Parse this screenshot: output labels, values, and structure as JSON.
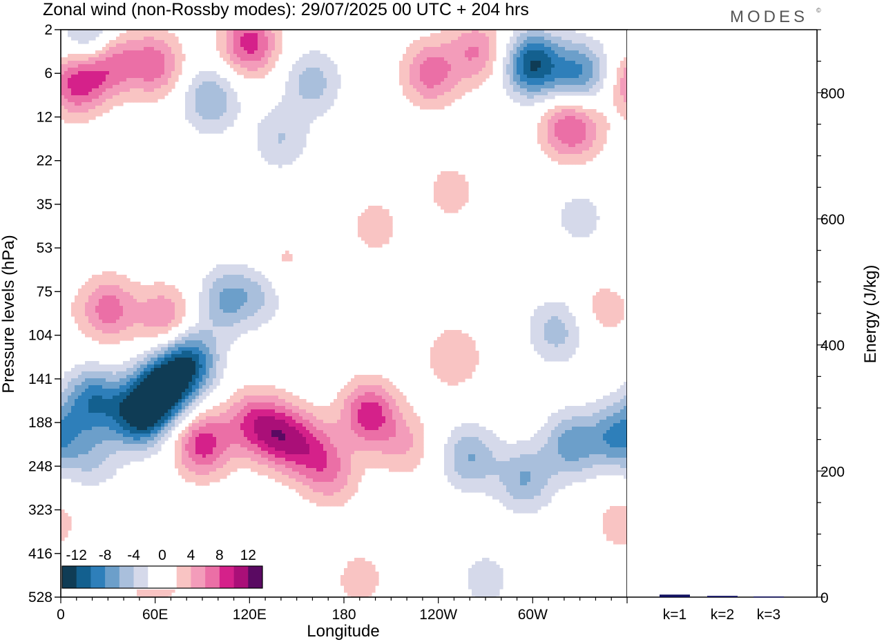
{
  "title": "Zonal wind (non-Rossby modes):  29/07/2025  00 UTC  + 204 hrs",
  "brand": "MODES",
  "brand_mark": "©",
  "colors": {
    "neg": [
      "#0f3c55",
      "#13608f",
      "#2e7fba",
      "#6c9fca",
      "#a9bfdc",
      "#d5d9ea"
    ],
    "pos": [
      "#f9c4c3",
      "#f39cba",
      "#eb6fa6",
      "#d5218a",
      "#aa0f78",
      "#5a0a62"
    ],
    "frame": "#000000",
    "bar": "#101060"
  },
  "chart_data": [
    {
      "type": "heatmap",
      "name": "zonal-wind-contour",
      "xlabel": "Longitude",
      "ylabel": "Pressure levels (hPa)",
      "x_ticks": [
        "0",
        "60E",
        "120E",
        "180",
        "120W",
        "60W"
      ],
      "x_tick_values": [
        0,
        60,
        120,
        180,
        240,
        300
      ],
      "xlim": [
        0,
        360
      ],
      "y_ticks": [
        "2",
        "6",
        "12",
        "22",
        "35",
        "53",
        "75",
        "104",
        "141",
        "188",
        "248",
        "323",
        "416",
        "528"
      ],
      "colorbar": {
        "labels": [
          "-12",
          "-8",
          "-4",
          "0",
          "4",
          "8",
          "12"
        ],
        "levels": [
          -14,
          -12,
          -10,
          -8,
          -6,
          -4,
          -2,
          2,
          4,
          6,
          8,
          10,
          12,
          14
        ]
      },
      "features": [
        {
          "lon": 20,
          "lev": 8.5,
          "val": -9
        },
        {
          "lon": 50,
          "lev": 8.8,
          "val": -13
        },
        {
          "lon": 66,
          "lev": 8.2,
          "val": -13
        },
        {
          "lon": 82,
          "lev": 7.6,
          "val": -10
        },
        {
          "lon": 105,
          "lev": 6.2,
          "val": -6
        },
        {
          "lon": 128,
          "lev": 6.0,
          "val": -4
        },
        {
          "lon": 20,
          "lev": 9.8,
          "val": -4
        },
        {
          "lon": 90,
          "lev": 9.5,
          "val": 9
        },
        {
          "lon": 122,
          "lev": 9.0,
          "val": 7
        },
        {
          "lon": 140,
          "lev": 9.3,
          "val": 8
        },
        {
          "lon": 158,
          "lev": 9.6,
          "val": 6
        },
        {
          "lon": 172,
          "lev": 10.2,
          "val": 5
        },
        {
          "lon": 196,
          "lev": 8.8,
          "val": 9
        },
        {
          "lon": 218,
          "lev": 9.5,
          "val": 4
        },
        {
          "lon": 250,
          "lev": 7.5,
          "val": 4
        },
        {
          "lon": 30,
          "lev": 6.4,
          "val": 7
        },
        {
          "lon": 66,
          "lev": 6.6,
          "val": 6
        },
        {
          "lon": 140,
          "lev": 5.4,
          "val": 3
        },
        {
          "lon": 200,
          "lev": 4.5,
          "val": 3
        },
        {
          "lon": 248,
          "lev": 3.7,
          "val": 3
        },
        {
          "lon": 320,
          "lev": 2.2,
          "val": 5
        },
        {
          "lon": 295,
          "lev": 10.3,
          "val": -6
        },
        {
          "lon": 325,
          "lev": 9.5,
          "val": -7
        },
        {
          "lon": 355,
          "lev": 9.3,
          "val": -8
        },
        {
          "lon": 260,
          "lev": 9.8,
          "val": -6
        },
        {
          "lon": 315,
          "lev": 6.9,
          "val": -5
        },
        {
          "lon": 330,
          "lev": 4.3,
          "val": -3
        },
        {
          "lon": 270,
          "lev": 12.6,
          "val": -3
        },
        {
          "lon": 345,
          "lev": 6.4,
          "val": 3
        },
        {
          "lon": 30,
          "lev": 0.7,
          "val": 9
        },
        {
          "lon": 10,
          "lev": 1.2,
          "val": 9
        },
        {
          "lon": 120,
          "lev": 0.3,
          "val": 9
        },
        {
          "lon": 60,
          "lev": 0.8,
          "val": 7
        },
        {
          "lon": 95,
          "lev": 1.6,
          "val": -6
        },
        {
          "lon": 160,
          "lev": 1.2,
          "val": -5
        },
        {
          "lon": 140,
          "lev": 2.5,
          "val": -4
        },
        {
          "lon": 235,
          "lev": 1.0,
          "val": 7
        },
        {
          "lon": 265,
          "lev": 0.5,
          "val": 6
        },
        {
          "lon": 300,
          "lev": 0.8,
          "val": -12
        },
        {
          "lon": 330,
          "lev": 1.0,
          "val": -8
        },
        {
          "lon": 20,
          "lev": 0.3,
          "val": -8
        },
        {
          "lon": 330,
          "lev": 2.3,
          "val": 4
        },
        {
          "lon": 60,
          "lev": 12.5,
          "val": 4
        },
        {
          "lon": 190,
          "lev": 12.6,
          "val": 3
        },
        {
          "lon": 355,
          "lev": 11.3,
          "val": 3
        }
      ]
    },
    {
      "type": "bar",
      "name": "energy-bars",
      "categories": [
        "k=1",
        "k=2",
        "k=3"
      ],
      "values": [
        4,
        2,
        1
      ],
      "ylabel": "Energy (J/kg)",
      "ylim": [
        0,
        900
      ],
      "y_ticks": [
        0,
        200,
        400,
        600,
        800
      ],
      "y_minor_step": 50
    }
  ]
}
